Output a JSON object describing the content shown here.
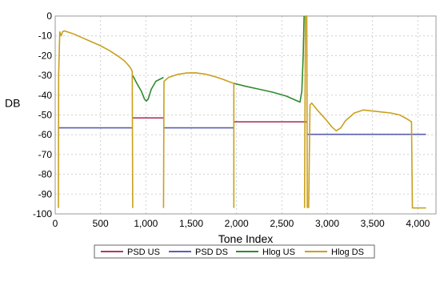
{
  "chart_data": {
    "type": "line",
    "xlabel": "Tone Index",
    "ylabel": "DB",
    "xlim": [
      0,
      4200
    ],
    "ylim": [
      -100,
      0
    ],
    "x_ticks": [
      0,
      500,
      1000,
      1500,
      2000,
      2500,
      3000,
      3500,
      4000
    ],
    "x_tick_labels": [
      "0",
      "500",
      "1,000",
      "1,500",
      "2,000",
      "2,500",
      "3,000",
      "3,500",
      "4,000"
    ],
    "y_ticks": [
      0,
      -10,
      -20,
      -30,
      -40,
      -50,
      -60,
      -70,
      -80,
      -90,
      -100
    ],
    "y_tick_labels": [
      "0",
      "-10",
      "-20",
      "-30",
      "-40",
      "-50",
      "-60",
      "-70",
      "-80",
      "-90",
      "-100"
    ],
    "grid": true,
    "legend_position": "bottom",
    "series": [
      {
        "name": "PSD US",
        "color": "#b03a5b",
        "segments": [
          [
            [
              855,
              -51.5
            ],
            [
              1195,
              -51.5
            ]
          ],
          [
            [
              1970,
              -53.5
            ],
            [
              2780,
              -53.5
            ]
          ]
        ]
      },
      {
        "name": "PSD DS",
        "color": "#5a5fb0",
        "segments": [
          [
            [
              30,
              -56.5
            ],
            [
              855,
              -56.5
            ]
          ],
          [
            [
              1195,
              -56.5
            ],
            [
              1970,
              -56.5
            ]
          ],
          [
            [
              2780,
              -59.8
            ],
            [
              4090,
              -59.8
            ]
          ]
        ]
      },
      {
        "name": "Hlog US",
        "color": "#2e8b2e",
        "segments": [
          [
            [
              855,
              -30
            ],
            [
              900,
              -34
            ],
            [
              950,
              -38
            ],
            [
              985,
              -42
            ],
            [
              1005,
              -43
            ],
            [
              1025,
              -42
            ],
            [
              1060,
              -37
            ],
            [
              1110,
              -33
            ],
            [
              1195,
              -31
            ]
          ],
          [
            [
              1970,
              -34
            ],
            [
              2100,
              -35.5
            ],
            [
              2250,
              -37
            ],
            [
              2400,
              -38.5
            ],
            [
              2550,
              -40.5
            ],
            [
              2650,
              -42.5
            ],
            [
              2700,
              -43.5
            ],
            [
              2720,
              -38
            ],
            [
              2735,
              -20
            ],
            [
              2745,
              0
            ]
          ]
        ]
      },
      {
        "name": "Hlog DS",
        "color": "#c9a01e",
        "segments": [
          [
            [
              35,
              -97
            ],
            [
              38,
              -30
            ],
            [
              50,
              -8
            ],
            [
              65,
              -10
            ],
            [
              80,
              -8
            ],
            [
              100,
              -7.5
            ],
            [
              200,
              -9
            ],
            [
              300,
              -11
            ],
            [
              400,
              -13
            ],
            [
              500,
              -15
            ],
            [
              600,
              -17.5
            ],
            [
              700,
              -20.5
            ],
            [
              760,
              -22.5
            ],
            [
              800,
              -24.5
            ],
            [
              835,
              -26.5
            ],
            [
              850,
              -28
            ],
            [
              855,
              -97
            ]
          ],
          [
            [
              1195,
              -97
            ],
            [
              1200,
              -33
            ],
            [
              1250,
              -31
            ],
            [
              1350,
              -29.5
            ],
            [
              1450,
              -28.8
            ],
            [
              1550,
              -28.7
            ],
            [
              1650,
              -29.3
            ],
            [
              1750,
              -30.5
            ],
            [
              1850,
              -32
            ],
            [
              1935,
              -33.5
            ],
            [
              1970,
              -34
            ],
            [
              1970,
              -97
            ]
          ],
          [
            [
              2750,
              -97
            ],
            [
              2760,
              0
            ],
            [
              2775,
              0
            ],
            [
              2780,
              -97
            ]
          ],
          [
            [
              2795,
              -97
            ],
            [
              2810,
              -45
            ],
            [
              2830,
              -44
            ],
            [
              2900,
              -48
            ],
            [
              2980,
              -52
            ],
            [
              3050,
              -56
            ],
            [
              3100,
              -58
            ],
            [
              3150,
              -56.5
            ],
            [
              3200,
              -53
            ],
            [
              3300,
              -49
            ],
            [
              3400,
              -47.5
            ],
            [
              3500,
              -48
            ],
            [
              3600,
              -48.5
            ],
            [
              3700,
              -49
            ],
            [
              3800,
              -50
            ],
            [
              3880,
              -52
            ],
            [
              3930,
              -53.5
            ],
            [
              3940,
              -97
            ],
            [
              4090,
              -97
            ]
          ]
        ]
      }
    ]
  }
}
